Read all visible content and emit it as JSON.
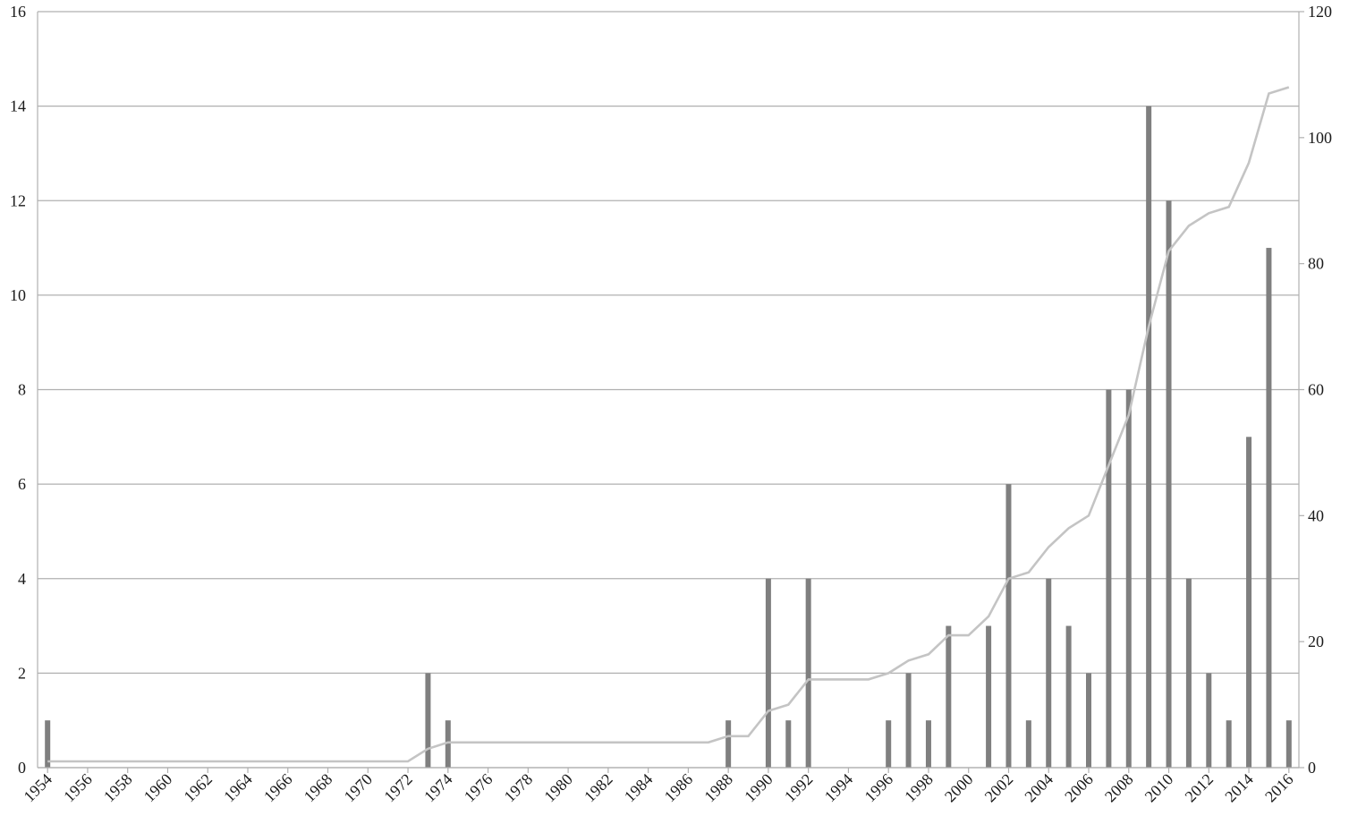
{
  "chart_data": {
    "type": "bar",
    "x": [
      1954,
      1955,
      1956,
      1957,
      1958,
      1959,
      1960,
      1961,
      1962,
      1963,
      1964,
      1965,
      1966,
      1967,
      1968,
      1969,
      1970,
      1971,
      1972,
      1973,
      1974,
      1975,
      1976,
      1977,
      1978,
      1979,
      1980,
      1981,
      1982,
      1983,
      1984,
      1985,
      1986,
      1987,
      1988,
      1989,
      1990,
      1991,
      1992,
      1993,
      1994,
      1995,
      1996,
      1997,
      1998,
      1999,
      2000,
      2001,
      2002,
      2003,
      2004,
      2005,
      2006,
      2007,
      2008,
      2009,
      2010,
      2011,
      2012,
      2013,
      2014,
      2015,
      2016
    ],
    "x_tick_labels": [
      "1954",
      "1956",
      "1958",
      "1960",
      "1962",
      "1964",
      "1966",
      "1968",
      "1970",
      "1972",
      "1974",
      "1976",
      "1978",
      "1980",
      "1982",
      "1984",
      "1986",
      "1988",
      "1990",
      "1992",
      "1994",
      "1996",
      "1998",
      "2000",
      "2002",
      "2004",
      "2006",
      "2008",
      "2010",
      "2012",
      "2014",
      "2016"
    ],
    "series": [
      {
        "type": "bar",
        "axis": "left",
        "color": "#7f7f7f",
        "values": [
          1,
          0,
          0,
          0,
          0,
          0,
          0,
          0,
          0,
          0,
          0,
          0,
          0,
          0,
          0,
          0,
          0,
          0,
          0,
          2,
          1,
          0,
          0,
          0,
          0,
          0,
          0,
          0,
          0,
          0,
          0,
          0,
          0,
          0,
          1,
          0,
          4,
          1,
          4,
          0,
          0,
          0,
          1,
          2,
          1,
          3,
          0,
          3,
          6,
          1,
          4,
          3,
          2,
          8,
          8,
          14,
          12,
          4,
          2,
          1,
          7,
          11,
          1
        ]
      },
      {
        "type": "line",
        "axis": "right",
        "color": "#c4c4c4",
        "values": [
          1,
          1,
          1,
          1,
          1,
          1,
          1,
          1,
          1,
          1,
          1,
          1,
          1,
          1,
          1,
          1,
          1,
          1,
          1,
          3,
          4,
          4,
          4,
          4,
          4,
          4,
          4,
          4,
          4,
          4,
          4,
          4,
          4,
          4,
          5,
          5,
          9,
          10,
          14,
          14,
          14,
          14,
          15,
          17,
          18,
          21,
          21,
          24,
          30,
          31,
          35,
          38,
          40,
          48,
          56,
          70,
          82,
          86,
          88,
          89,
          96,
          107,
          108
        ]
      }
    ],
    "y_left": {
      "min": 0,
      "max": 16,
      "ticks": [
        0,
        2,
        4,
        6,
        8,
        10,
        12,
        14,
        16
      ]
    },
    "y_right": {
      "min": 0,
      "max": 120,
      "ticks": [
        0,
        20,
        40,
        60,
        80,
        100,
        120
      ]
    },
    "grid": true,
    "legend": "none"
  }
}
